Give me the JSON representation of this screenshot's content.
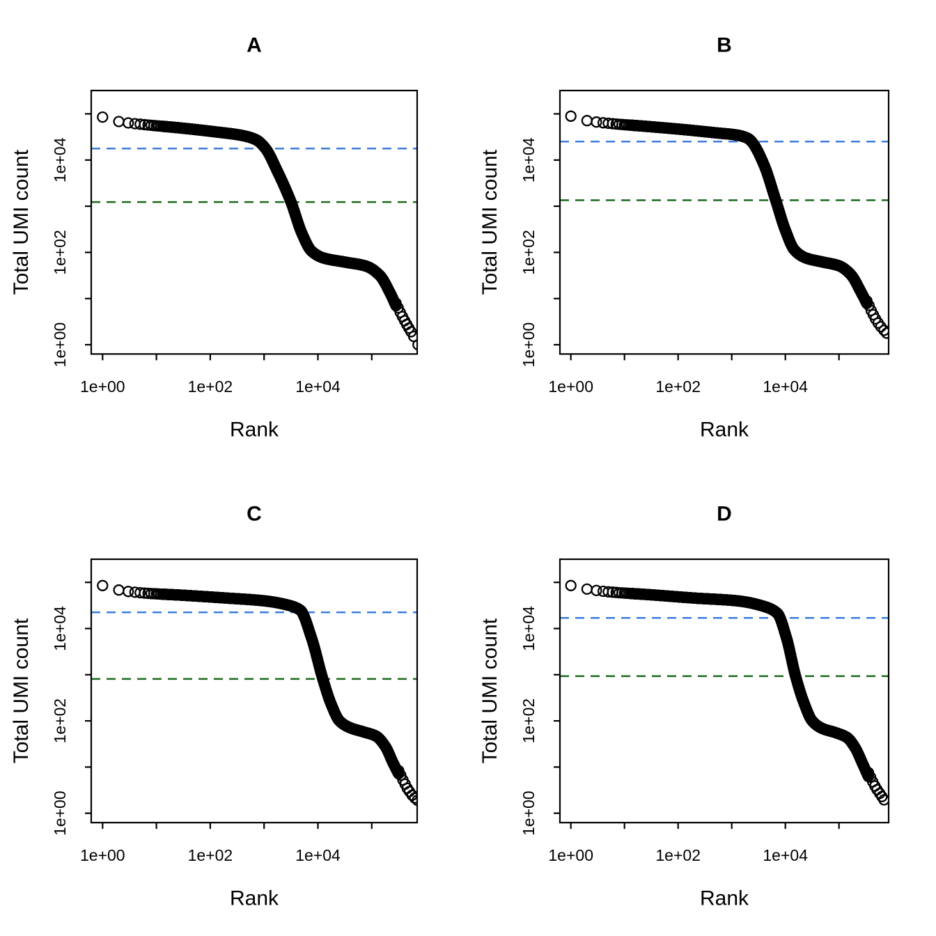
{
  "figure": {
    "background": "#ffffff",
    "description_visible_panels": [
      "A",
      "B",
      "C",
      "D"
    ]
  },
  "colors": {
    "points": "#000000",
    "axis": "#000000",
    "blue_dashed_line": "#3a7cdb",
    "green_dashed_line": "#1b691b"
  },
  "chart_data": [
    {
      "type": "scatter",
      "panel": "A",
      "title": "A",
      "xlabel": "Rank",
      "ylabel": "Total UMI count",
      "xscale": "log",
      "yscale": "log",
      "x_tick_labels_shown": [
        "1e+00",
        "1e+02",
        "1e+04"
      ],
      "y_tick_labels_shown": [
        "1e+00",
        "1e+02",
        "1e+04"
      ],
      "x_decade_ticks": [
        1,
        10,
        100,
        1000,
        10000,
        100000
      ],
      "y_decade_ticks": [
        1,
        10,
        100,
        1000,
        10000,
        100000
      ],
      "hline_blue_value": 17800,
      "hline_green_value": 1230,
      "top_count": 85000,
      "max_rank": 724000,
      "curve_log10_rank_count": [
        [
          0,
          4.93
        ],
        [
          0.32,
          4.83
        ],
        [
          0.75,
          4.77
        ],
        [
          1.4,
          4.7
        ],
        [
          2.1,
          4.61
        ],
        [
          2.6,
          4.53
        ],
        [
          2.85,
          4.44
        ],
        [
          3.02,
          4.26
        ],
        [
          3.25,
          3.75
        ],
        [
          3.5,
          3.09
        ],
        [
          3.7,
          2.42
        ],
        [
          3.88,
          2.03
        ],
        [
          4.1,
          1.88
        ],
        [
          4.5,
          1.79
        ],
        [
          4.9,
          1.7
        ],
        [
          5.15,
          1.5
        ],
        [
          5.35,
          1.1
        ],
        [
          5.5,
          0.72
        ],
        [
          5.65,
          0.4
        ],
        [
          5.78,
          0.18
        ],
        [
          5.86,
          0.0
        ]
      ],
      "tail_points_log10": [
        [
          5.45,
          0.9
        ],
        [
          5.49,
          0.8
        ],
        [
          5.53,
          0.7
        ],
        [
          5.57,
          0.61
        ],
        [
          5.61,
          0.52
        ],
        [
          5.65,
          0.44
        ],
        [
          5.69,
          0.36
        ],
        [
          5.73,
          0.28
        ],
        [
          5.78,
          0.18
        ],
        [
          5.86,
          0.0
        ]
      ]
    },
    {
      "type": "scatter",
      "panel": "B",
      "title": "B",
      "xlabel": "Rank",
      "ylabel": "Total UMI count",
      "xscale": "log",
      "yscale": "log",
      "x_tick_labels_shown": [
        "1e+00",
        "1e+02",
        "1e+04"
      ],
      "y_tick_labels_shown": [
        "1e+00",
        "1e+02",
        "1e+04"
      ],
      "x_decade_ticks": [
        1,
        10,
        100,
        1000,
        10000,
        100000
      ],
      "y_decade_ticks": [
        1,
        10,
        100,
        1000,
        10000,
        100000
      ],
      "hline_blue_value": 25100,
      "hline_green_value": 1350,
      "top_count": 89000,
      "max_rank": 776000,
      "curve_log10_rank_count": [
        [
          0,
          4.95
        ],
        [
          0.32,
          4.85
        ],
        [
          0.75,
          4.79
        ],
        [
          1.4,
          4.73
        ],
        [
          2.1,
          4.66
        ],
        [
          2.7,
          4.59
        ],
        [
          3.1,
          4.54
        ],
        [
          3.3,
          4.47
        ],
        [
          3.37,
          4.4
        ],
        [
          3.6,
          3.9
        ],
        [
          3.82,
          3.13
        ],
        [
          4.0,
          2.48
        ],
        [
          4.17,
          2.05
        ],
        [
          4.38,
          1.88
        ],
        [
          4.7,
          1.79
        ],
        [
          5.0,
          1.71
        ],
        [
          5.22,
          1.52
        ],
        [
          5.42,
          1.12
        ],
        [
          5.57,
          0.78
        ],
        [
          5.72,
          0.47
        ],
        [
          5.89,
          0.25
        ]
      ],
      "tail_points_log10": [
        [
          5.52,
          0.95
        ],
        [
          5.56,
          0.85
        ],
        [
          5.6,
          0.74
        ],
        [
          5.64,
          0.65
        ],
        [
          5.68,
          0.56
        ],
        [
          5.73,
          0.47
        ],
        [
          5.78,
          0.39
        ],
        [
          5.84,
          0.31
        ],
        [
          5.89,
          0.25
        ]
      ]
    },
    {
      "type": "scatter",
      "panel": "C",
      "title": "C",
      "xlabel": "Rank",
      "ylabel": "Total UMI count",
      "xscale": "log",
      "yscale": "log",
      "x_tick_labels_shown": [
        "1e+00",
        "1e+02",
        "1e+04"
      ],
      "y_tick_labels_shown": [
        "1e+00",
        "1e+02",
        "1e+04"
      ],
      "x_decade_ticks": [
        1,
        10,
        100,
        1000,
        10000,
        100000
      ],
      "y_decade_ticks": [
        1,
        10,
        100,
        1000,
        10000,
        100000
      ],
      "hline_blue_value": 22400,
      "hline_green_value": 810,
      "top_count": 85000,
      "max_rank": 708000,
      "curve_log10_rank_count": [
        [
          0,
          4.93
        ],
        [
          0.32,
          4.83
        ],
        [
          0.75,
          4.77
        ],
        [
          1.5,
          4.72
        ],
        [
          2.3,
          4.66
        ],
        [
          3.0,
          4.6
        ],
        [
          3.4,
          4.52
        ],
        [
          3.67,
          4.4
        ],
        [
          3.88,
          3.8
        ],
        [
          4.09,
          2.91
        ],
        [
          4.25,
          2.35
        ],
        [
          4.4,
          2.0
        ],
        [
          4.6,
          1.85
        ],
        [
          4.85,
          1.76
        ],
        [
          5.08,
          1.67
        ],
        [
          5.25,
          1.45
        ],
        [
          5.4,
          1.08
        ],
        [
          5.55,
          0.75
        ],
        [
          5.7,
          0.48
        ],
        [
          5.85,
          0.28
        ]
      ],
      "tail_points_log10": [
        [
          5.5,
          0.92
        ],
        [
          5.54,
          0.82
        ],
        [
          5.58,
          0.72
        ],
        [
          5.62,
          0.63
        ],
        [
          5.66,
          0.54
        ],
        [
          5.7,
          0.47
        ],
        [
          5.75,
          0.39
        ],
        [
          5.8,
          0.33
        ],
        [
          5.85,
          0.28
        ]
      ]
    },
    {
      "type": "scatter",
      "panel": "D",
      "title": "D",
      "xlabel": "Rank",
      "ylabel": "Total UMI count",
      "xscale": "log",
      "yscale": "log",
      "x_tick_labels_shown": [
        "1e+00",
        "1e+02",
        "1e+04"
      ],
      "y_tick_labels_shown": [
        "1e+00",
        "1e+02",
        "1e+04"
      ],
      "x_decade_ticks": [
        1,
        10,
        100,
        1000,
        10000,
        100000
      ],
      "y_decade_ticks": [
        1,
        10,
        100,
        1000,
        10000,
        100000
      ],
      "hline_blue_value": 17000,
      "hline_green_value": 930,
      "top_count": 85000,
      "max_rank": 692000,
      "curve_log10_rank_count": [
        [
          0,
          4.93
        ],
        [
          0.32,
          4.85
        ],
        [
          0.75,
          4.79
        ],
        [
          1.5,
          4.73
        ],
        [
          2.3,
          4.66
        ],
        [
          3.1,
          4.6
        ],
        [
          3.6,
          4.48
        ],
        [
          3.85,
          4.33
        ],
        [
          4.02,
          3.8
        ],
        [
          4.19,
          2.97
        ],
        [
          4.35,
          2.38
        ],
        [
          4.5,
          2.0
        ],
        [
          4.68,
          1.84
        ],
        [
          4.95,
          1.74
        ],
        [
          5.15,
          1.64
        ],
        [
          5.3,
          1.42
        ],
        [
          5.45,
          1.05
        ],
        [
          5.6,
          0.68
        ],
        [
          5.84,
          0.29
        ]
      ],
      "tail_points_log10": [
        [
          5.55,
          0.88
        ],
        [
          5.59,
          0.78
        ],
        [
          5.63,
          0.68
        ],
        [
          5.67,
          0.59
        ],
        [
          5.71,
          0.51
        ],
        [
          5.76,
          0.43
        ],
        [
          5.8,
          0.36
        ],
        [
          5.84,
          0.29
        ]
      ]
    }
  ]
}
